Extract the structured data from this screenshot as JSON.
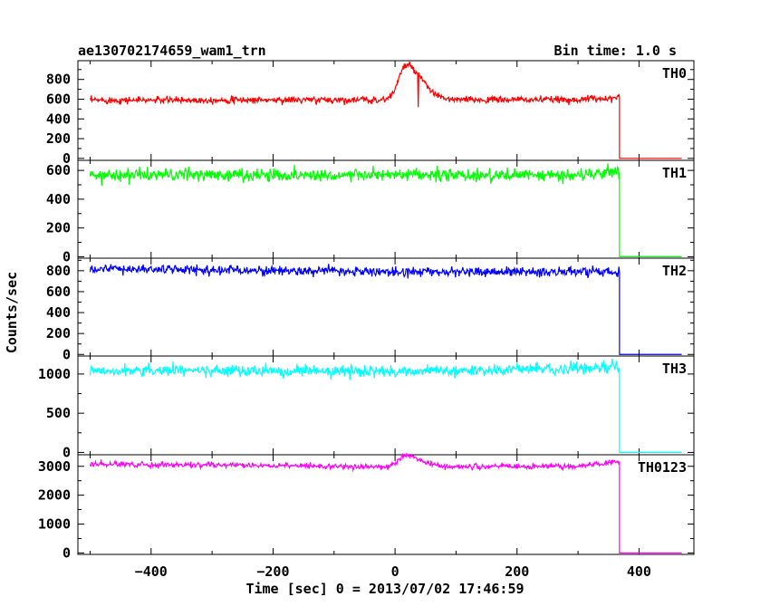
{
  "chart_data": {
    "type": "line",
    "title": "ae130702174659_wam1_trn",
    "subtitle": "Bin time: 1.0 s",
    "xlabel": "Time [sec] 0 = 2013/07/02 17:46:59",
    "ylabel": "Counts/sec",
    "xlim": [
      -520,
      490
    ],
    "xticks": [
      -400,
      -200,
      0,
      200,
      400
    ],
    "x_data_range": [
      -500,
      470
    ],
    "data_end_time": 368,
    "panels": [
      {
        "name": "TH0",
        "color": "#ff0000",
        "ylim": [
          -20,
          990
        ],
        "yticks": [
          0,
          200,
          400,
          600,
          800
        ],
        "ytick_labels": [
          "0",
          "200",
          "400",
          "600",
          "800"
        ],
        "baseline": 590,
        "noise": 17,
        "trend": [
          [
            -500,
            590
          ],
          [
            300,
            595
          ],
          [
            360,
            615
          ]
        ],
        "peak": {
          "center": 18,
          "amplitude": 350,
          "width": 12,
          "tail": 25
        },
        "dip_after_peak": {
          "time": 38,
          "value": 520
        }
      },
      {
        "name": "TH1",
        "color": "#00ff00",
        "ylim": [
          -10,
          670
        ],
        "yticks": [
          0,
          200,
          400,
          600
        ],
        "ytick_labels": [
          "0",
          "200",
          "400",
          "600"
        ],
        "baseline": 565,
        "noise": 22,
        "trend": [
          [
            -500,
            570
          ],
          [
            300,
            565
          ],
          [
            360,
            590
          ]
        ],
        "peak": null
      },
      {
        "name": "TH2",
        "color": "#0000ff",
        "ylim": [
          -15,
          920
        ],
        "yticks": [
          0,
          200,
          400,
          600,
          800
        ],
        "ytick_labels": [
          "0",
          "200",
          "400",
          "600",
          "800"
        ],
        "baseline": 800,
        "noise": 22,
        "trend": [
          [
            -500,
            820
          ],
          [
            0,
            790
          ],
          [
            360,
            790
          ]
        ],
        "peak": null
      },
      {
        "name": "TH3",
        "color": "#00ffff",
        "ylim": [
          -30,
          1230
        ],
        "yticks": [
          0,
          500,
          1000
        ],
        "ytick_labels": [
          "0",
          "500",
          "1000"
        ],
        "baseline": 1040,
        "noise": 35,
        "trend": [
          [
            -500,
            1050
          ],
          [
            0,
            1030
          ],
          [
            360,
            1080
          ]
        ],
        "peak": null
      },
      {
        "name": "TH0123",
        "color": "#ff00ff",
        "ylim": [
          -50,
          3400
        ],
        "yticks": [
          0,
          1000,
          2000,
          3000
        ],
        "ytick_labels": [
          "0",
          "1000",
          "2000",
          "3000"
        ],
        "baseline": 3000,
        "noise": 45,
        "trend": [
          [
            -500,
            3080
          ],
          [
            0,
            2980
          ],
          [
            300,
            3000
          ],
          [
            360,
            3150
          ]
        ],
        "peak": {
          "center": 18,
          "amplitude": 380,
          "width": 12,
          "tail": 25
        },
        "dip_after_peak": null
      }
    ]
  }
}
